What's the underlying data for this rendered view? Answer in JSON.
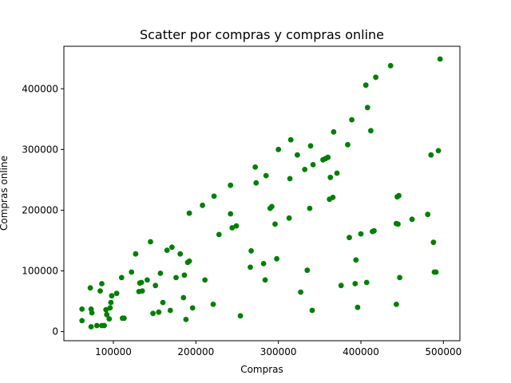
{
  "chart_data": {
    "type": "scatter",
    "title": "Scatter por compras y compras online",
    "xlabel": "Compras",
    "ylabel": "Compras online",
    "xlim": [
      40000,
      520000
    ],
    "ylim": [
      -15000,
      470000
    ],
    "xticks": [
      {
        "value": 100000,
        "label": "100000"
      },
      {
        "value": 200000,
        "label": "200000"
      },
      {
        "value": 300000,
        "label": "300000"
      },
      {
        "value": 400000,
        "label": "400000"
      },
      {
        "value": 500000,
        "label": "500000"
      }
    ],
    "yticks": [
      {
        "value": 0,
        "label": "0"
      },
      {
        "value": 100000,
        "label": "100000"
      },
      {
        "value": 200000,
        "label": "200000"
      },
      {
        "value": 300000,
        "label": "300000"
      },
      {
        "value": 400000,
        "label": "400000"
      }
    ],
    "grid": false,
    "marker_color": "#008000",
    "points": [
      [
        62000,
        37000
      ],
      [
        62000,
        18000
      ],
      [
        72000,
        72000
      ],
      [
        73000,
        37000
      ],
      [
        73000,
        8000
      ],
      [
        74000,
        31000
      ],
      [
        80000,
        10000
      ],
      [
        84000,
        67000
      ],
      [
        86000,
        79000
      ],
      [
        86000,
        10000
      ],
      [
        89000,
        10000
      ],
      [
        91000,
        36000
      ],
      [
        92000,
        28000
      ],
      [
        95000,
        21000
      ],
      [
        96000,
        39000
      ],
      [
        97000,
        48000
      ],
      [
        98000,
        59000
      ],
      [
        104000,
        63000
      ],
      [
        110000,
        89000
      ],
      [
        111000,
        22000
      ],
      [
        113000,
        22000
      ],
      [
        122000,
        98000
      ],
      [
        127000,
        128000
      ],
      [
        131000,
        66000
      ],
      [
        132000,
        80000
      ],
      [
        134000,
        81000
      ],
      [
        135000,
        67000
      ],
      [
        141000,
        85000
      ],
      [
        145000,
        148000
      ],
      [
        148000,
        30000
      ],
      [
        151000,
        76000
      ],
      [
        155000,
        32000
      ],
      [
        157000,
        96000
      ],
      [
        160000,
        48000
      ],
      [
        165000,
        134000
      ],
      [
        169000,
        35000
      ],
      [
        171000,
        139000
      ],
      [
        176000,
        89000
      ],
      [
        181000,
        128000
      ],
      [
        185000,
        56000
      ],
      [
        186000,
        93000
      ],
      [
        188000,
        20000
      ],
      [
        190000,
        114000
      ],
      [
        192000,
        116000
      ],
      [
        192000,
        195000
      ],
      [
        196000,
        39000
      ],
      [
        208000,
        208000
      ],
      [
        211000,
        85000
      ],
      [
        221000,
        45000
      ],
      [
        222000,
        223000
      ],
      [
        228000,
        160000
      ],
      [
        242000,
        194000
      ],
      [
        242000,
        241000
      ],
      [
        244000,
        171000
      ],
      [
        249000,
        174000
      ],
      [
        254000,
        26000
      ],
      [
        266000,
        106000
      ],
      [
        267000,
        133000
      ],
      [
        272000,
        271000
      ],
      [
        273000,
        245000
      ],
      [
        282000,
        112000
      ],
      [
        284000,
        85000
      ],
      [
        285000,
        257000
      ],
      [
        290000,
        203000
      ],
      [
        292000,
        206000
      ],
      [
        296000,
        177000
      ],
      [
        298000,
        120000
      ],
      [
        300000,
        300000
      ],
      [
        313000,
        187000
      ],
      [
        314000,
        252000
      ],
      [
        315000,
        316000
      ],
      [
        323000,
        291000
      ],
      [
        327000,
        65000
      ],
      [
        332000,
        267000
      ],
      [
        335000,
        101000
      ],
      [
        338000,
        203000
      ],
      [
        339000,
        306000
      ],
      [
        341000,
        35000
      ],
      [
        342000,
        275000
      ],
      [
        354000,
        283000
      ],
      [
        357000,
        285000
      ],
      [
        360000,
        287000
      ],
      [
        362000,
        218000
      ],
      [
        363000,
        254000
      ],
      [
        366000,
        221000
      ],
      [
        367000,
        329000
      ],
      [
        371000,
        261000
      ],
      [
        376000,
        76000
      ],
      [
        384000,
        308000
      ],
      [
        386000,
        155000
      ],
      [
        389000,
        349000
      ],
      [
        393000,
        79000
      ],
      [
        394000,
        118000
      ],
      [
        396000,
        40000
      ],
      [
        400000,
        161000
      ],
      [
        406000,
        406000
      ],
      [
        407000,
        81000
      ],
      [
        408000,
        369000
      ],
      [
        412000,
        331000
      ],
      [
        414000,
        165000
      ],
      [
        416000,
        166000
      ],
      [
        418000,
        419000
      ],
      [
        436000,
        438000
      ],
      [
        443000,
        45000
      ],
      [
        443000,
        178000
      ],
      [
        444000,
        222000
      ],
      [
        445000,
        177000
      ],
      [
        446000,
        224000
      ],
      [
        447000,
        89000
      ],
      [
        462000,
        185000
      ],
      [
        481000,
        193000
      ],
      [
        485000,
        291000
      ],
      [
        488000,
        147000
      ],
      [
        489000,
        98000
      ],
      [
        491000,
        98000
      ],
      [
        494000,
        298000
      ],
      [
        496000,
        449000
      ]
    ]
  }
}
